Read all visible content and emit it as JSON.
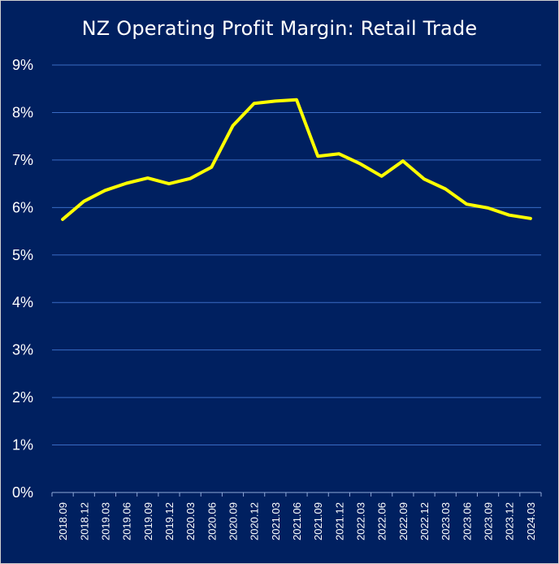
{
  "chart_data": {
    "type": "line",
    "title": "NZ Operating Profit Margin: Retail Trade",
    "xlabel": "",
    "ylabel": "",
    "ylim": [
      0,
      9
    ],
    "y_tick_labels": [
      "0%",
      "1%",
      "2%",
      "3%",
      "4%",
      "5%",
      "6%",
      "7%",
      "8%",
      "9%"
    ],
    "grid": true,
    "legend": "none",
    "categories": [
      "2018.09",
      "2018.12",
      "2019.03",
      "2019.06",
      "2019.09",
      "2019.12",
      "2020.03",
      "2020.06",
      "2020.09",
      "2020.12",
      "2021.03",
      "2021.06",
      "2021.09",
      "2021.12",
      "2022.03",
      "2022.06",
      "2022.09",
      "2022.12",
      "2023.03",
      "2023.06",
      "2023.09",
      "2023.12",
      "2024.03"
    ],
    "series": [
      {
        "color": "#FFFF00",
        "values": [
          5.75,
          6.13,
          6.36,
          6.51,
          6.62,
          6.5,
          6.61,
          6.85,
          7.72,
          8.19,
          8.24,
          8.27,
          7.08,
          7.13,
          6.92,
          6.66,
          6.98,
          6.6,
          6.39,
          6.07,
          5.99,
          5.84,
          5.77
        ]
      }
    ]
  },
  "colors": {
    "background": "#002060",
    "gridline": "#3A6BC4",
    "axis": "#8FA8D8",
    "text": "#FFFFFF",
    "line": "#FFFF00"
  }
}
